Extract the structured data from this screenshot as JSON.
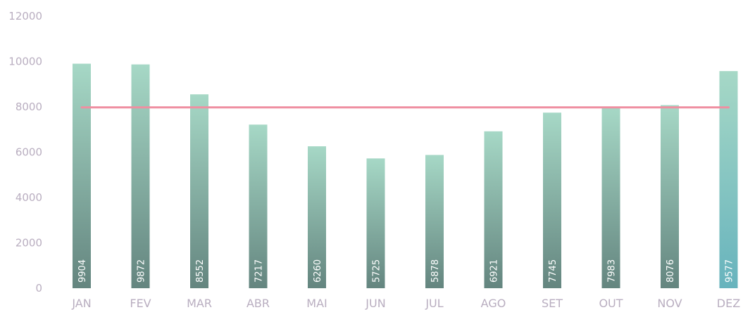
{
  "chart_data": {
    "type": "bar",
    "title": "",
    "xlabel": "",
    "ylabel": "",
    "ylim": [
      0,
      12000
    ],
    "yticks": [
      0,
      2000,
      4000,
      6000,
      8000,
      10000,
      12000
    ],
    "grid": false,
    "categories": [
      "JAN",
      "FEV",
      "MAR",
      "ABR",
      "MAI",
      "JUN",
      "JUL",
      "AGO",
      "SET",
      "OUT",
      "NOV",
      "DEZ"
    ],
    "series": [
      {
        "type": "bar",
        "values": [
          9904,
          9872,
          8552,
          7217,
          6260,
          5725,
          5878,
          6921,
          7745,
          7983,
          8076,
          9577
        ],
        "data_labels": [
          "9904",
          "9872",
          "8552",
          "7217",
          "6260",
          "5725",
          "5878",
          "6921",
          "7745",
          "7983",
          "8076",
          "9577"
        ]
      },
      {
        "type": "line",
        "values": [
          7977,
          7977,
          7977,
          7977,
          7977,
          7977,
          7977,
          7977,
          7977,
          7977,
          7977,
          7977
        ]
      }
    ],
    "colors": {
      "bar_top": "#a6d8c6",
      "bar_bottom": "#64857f",
      "bar_bottom_last": "#67b3bd",
      "line": "#ef8fa1",
      "text": "#b9aec0",
      "bar_label": "#ffffff"
    }
  }
}
